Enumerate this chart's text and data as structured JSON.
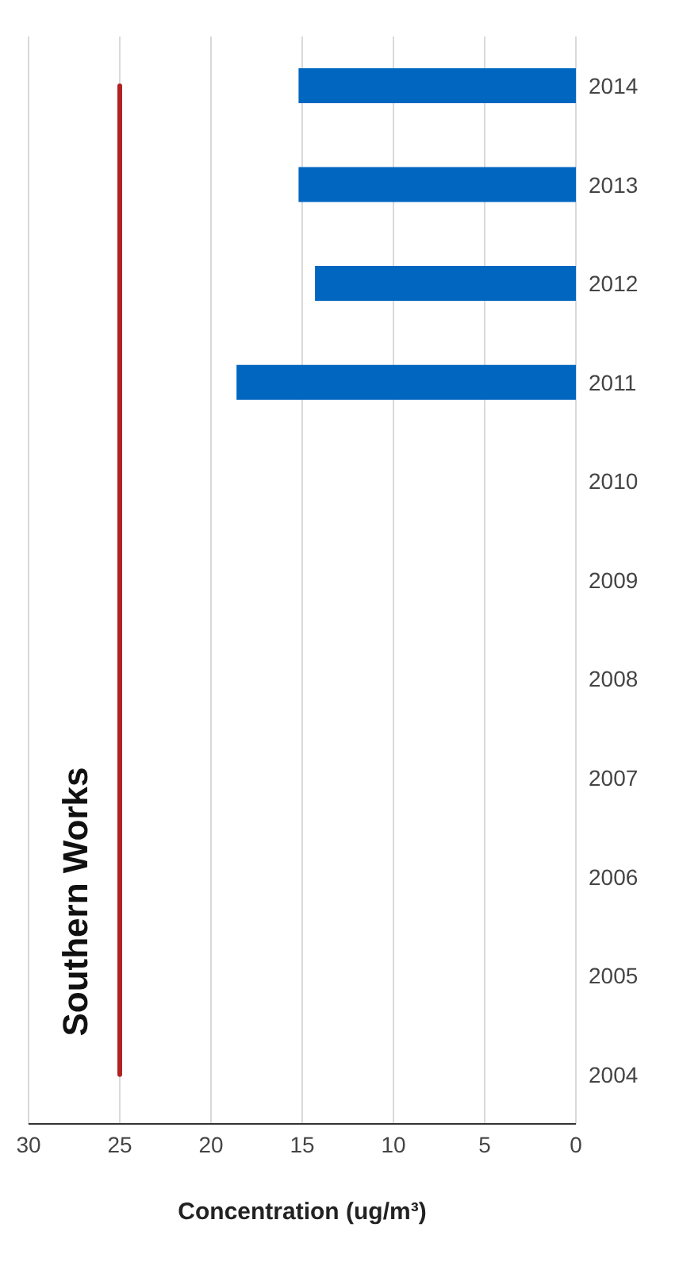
{
  "chart_data": {
    "type": "bar",
    "orientation": "horizontal",
    "title": "Southern Works",
    "xlabel": "Concentration (ug/m³)",
    "categories": [
      "2014",
      "2013",
      "2012",
      "2011",
      "2010",
      "2009",
      "2008",
      "2007",
      "2006",
      "2005",
      "2004"
    ],
    "series": [
      {
        "color": "#0066c0",
        "values": [
          15.2,
          15.2,
          14.3,
          18.6,
          null,
          null,
          null,
          null,
          null,
          null,
          null
        ]
      },
      {
        "type": "line",
        "color": "#b22222",
        "values": [
          25,
          25,
          25,
          25,
          25,
          25,
          25,
          25,
          25,
          25,
          25
        ]
      }
    ],
    "xlim": [
      30,
      0
    ],
    "xticks": [
      30,
      25,
      20,
      15,
      10,
      5,
      0
    ],
    "grid": "x",
    "legend": false
  }
}
